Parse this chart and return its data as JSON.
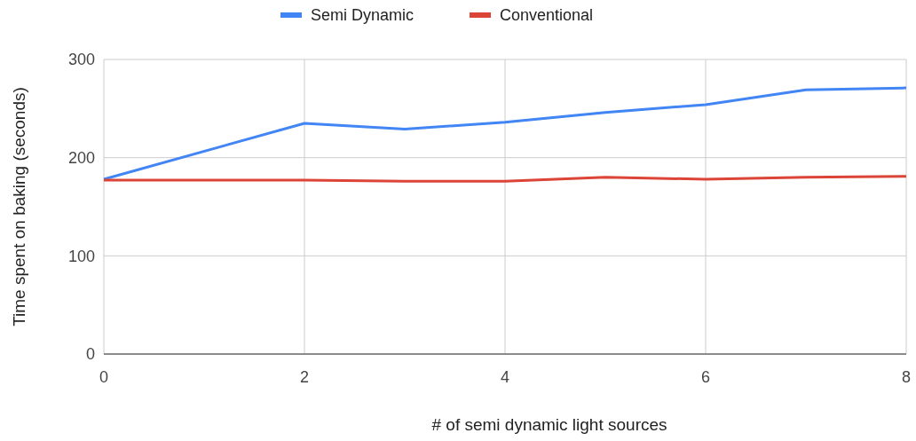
{
  "chart_data": {
    "type": "line",
    "xlabel": "# of semi dynamic light sources",
    "ylabel": "Time spent on baking (seconds)",
    "x": [
      0,
      2,
      3,
      4,
      5,
      6,
      7,
      8
    ],
    "series": [
      {
        "name": "Semi Dynamic",
        "color": "#4285f4",
        "values": [
          178,
          235,
          229,
          236,
          246,
          254,
          269,
          271
        ]
      },
      {
        "name": "Conventional",
        "color": "#db4437",
        "values": [
          177,
          177,
          176,
          176,
          180,
          178,
          180,
          181
        ]
      }
    ],
    "xlim": [
      0,
      8
    ],
    "xticks": [
      0,
      2,
      4,
      6,
      8
    ],
    "ylim": [
      0,
      300
    ],
    "yticks": [
      0,
      100,
      200,
      300
    ],
    "grid": true,
    "legend": "top"
  }
}
